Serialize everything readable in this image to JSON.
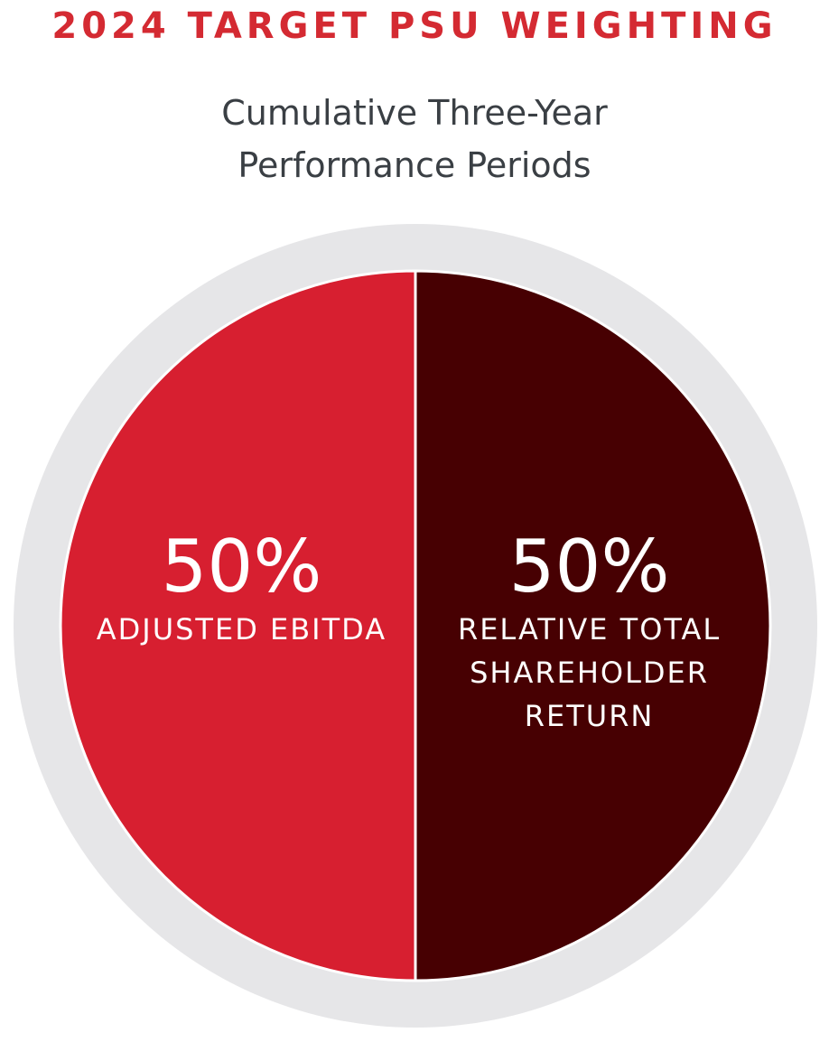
{
  "chart_data": {
    "type": "pie",
    "title": "2024 TARGET PSU WEIGHTING",
    "subtitle": "Cumulative Three-Year Performance Periods",
    "categories": [
      "ADJUSTED EBITDA",
      "RELATIVE TOTAL SHAREHOLDER RETURN"
    ],
    "values": [
      50,
      50
    ],
    "value_labels": [
      "50%",
      "50%"
    ],
    "colors": [
      "#d71f30",
      "#470002"
    ]
  }
}
